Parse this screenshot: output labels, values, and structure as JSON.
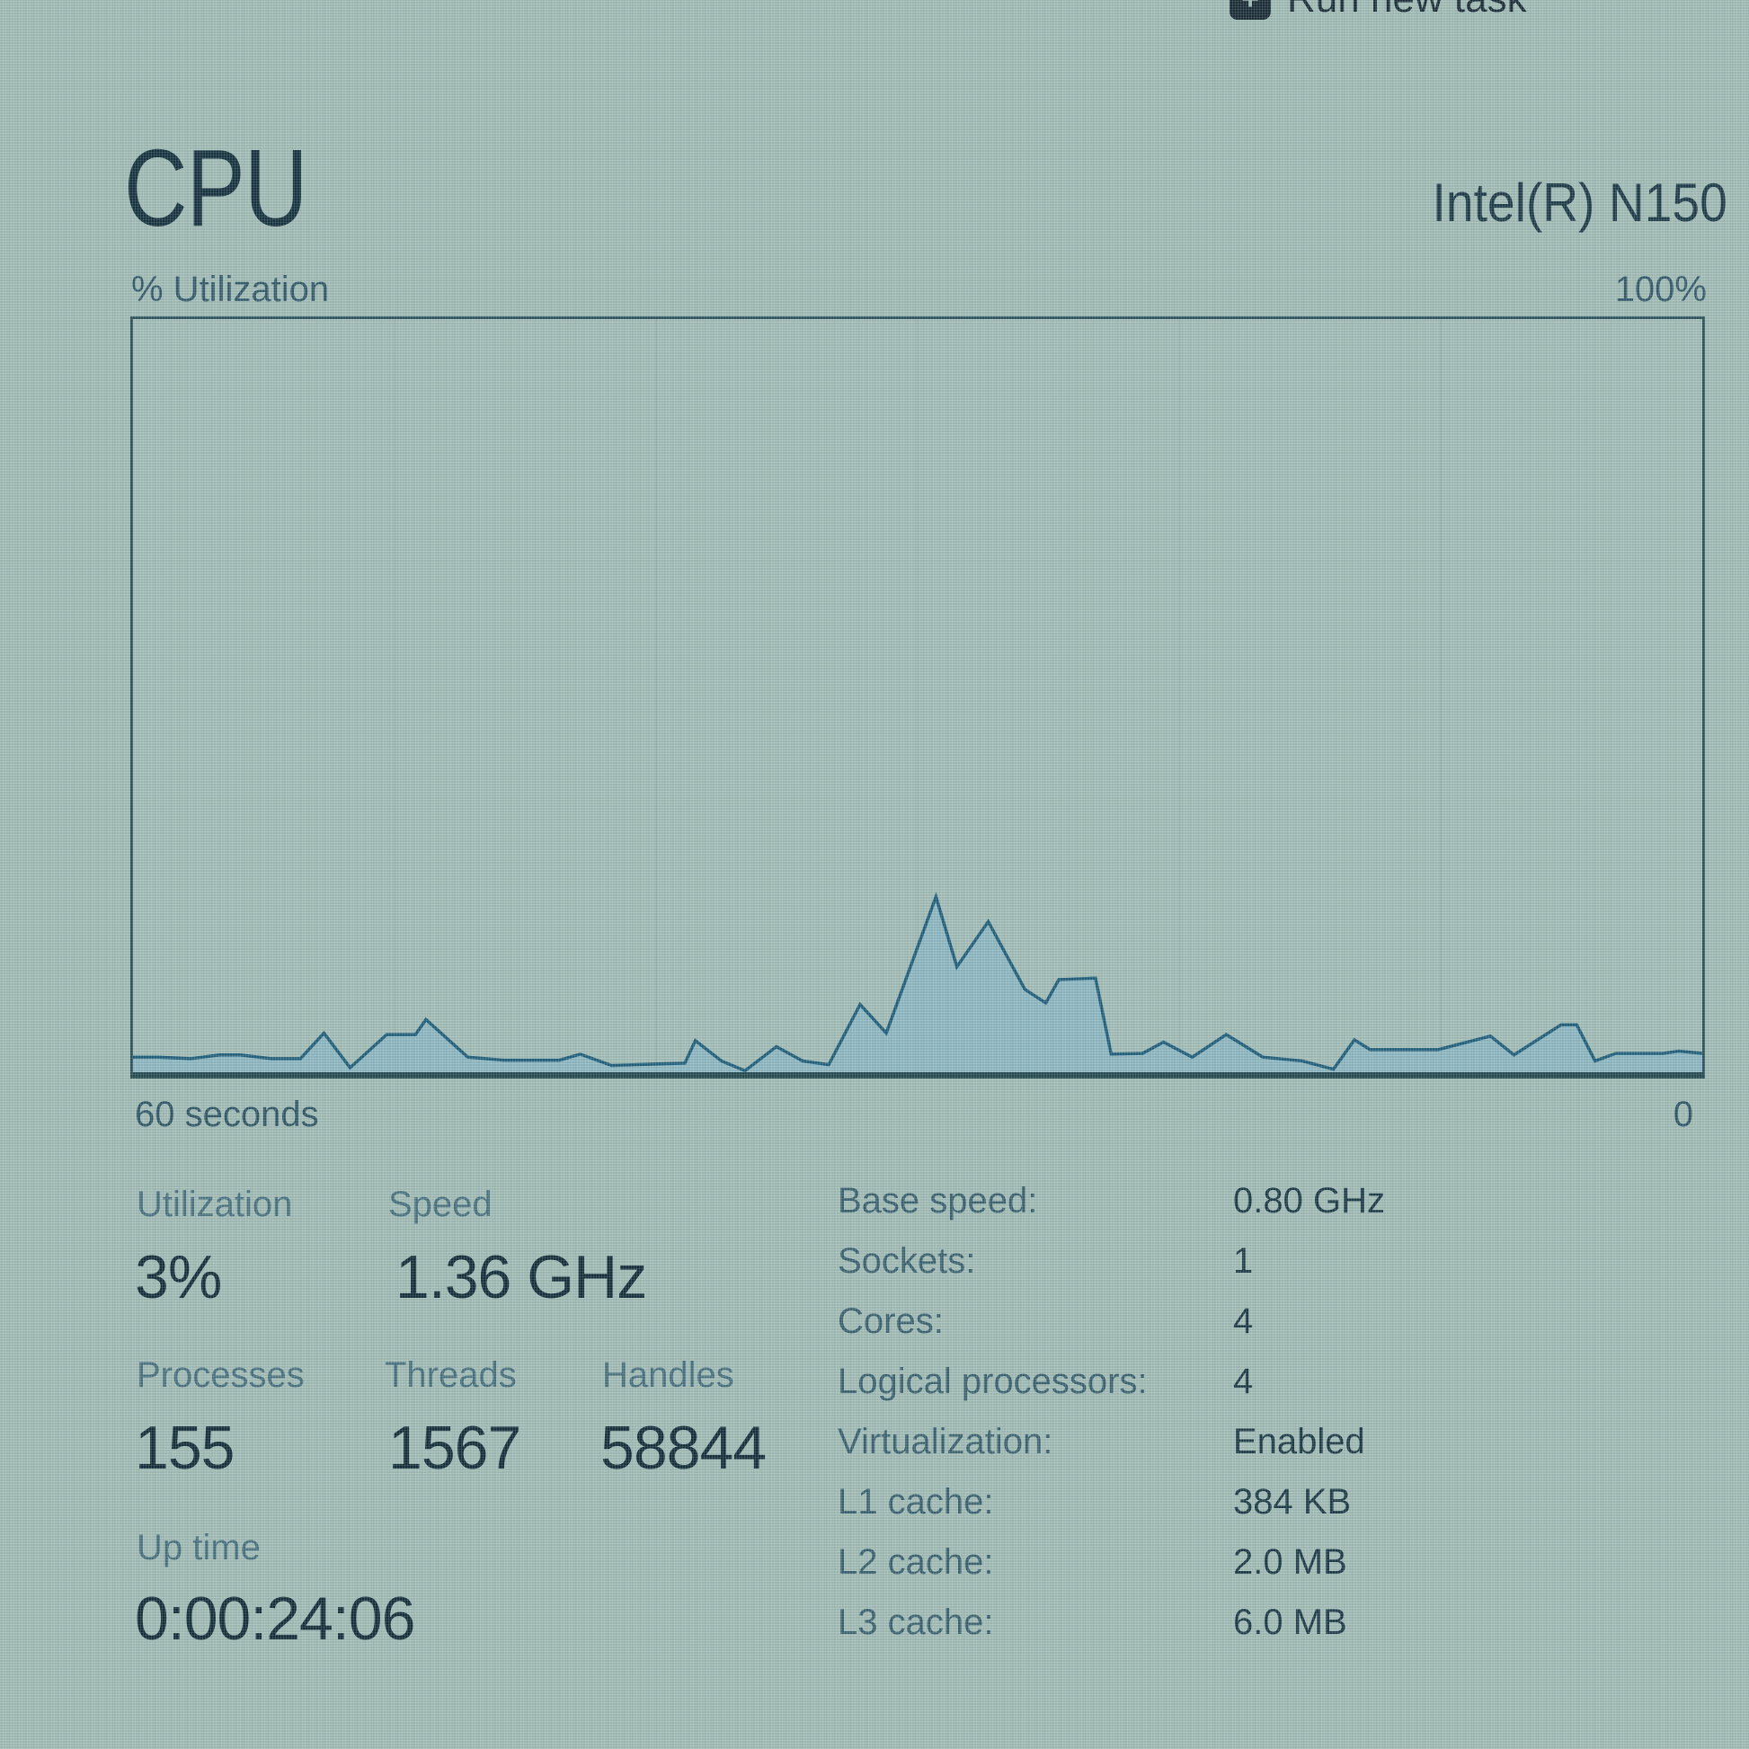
{
  "toolbar": {
    "run_new_task_label": "Run new task",
    "new_task_icon_glyph": "+"
  },
  "header": {
    "title": "CPU",
    "processor_name": "Intel(R) N150"
  },
  "chart": {
    "top_left_label": "% Utilization",
    "top_right_label": "100%",
    "bottom_left_label": "60 seconds",
    "bottom_right_label": "0"
  },
  "chart_data": {
    "type": "area",
    "title": "CPU % Utilization over 60 seconds",
    "series_name": "% Utilization",
    "x_range_seconds": [
      60,
      0
    ],
    "ylim": [
      0,
      100
    ],
    "grid": false,
    "legend": "none",
    "points": [
      {
        "s": 60.0,
        "v": 2.0
      },
      {
        "s": 59.0,
        "v": 2.0
      },
      {
        "s": 57.8,
        "v": 1.8
      },
      {
        "s": 56.7,
        "v": 2.3
      },
      {
        "s": 55.9,
        "v": 2.3
      },
      {
        "s": 54.7,
        "v": 1.8
      },
      {
        "s": 53.6,
        "v": 1.8
      },
      {
        "s": 52.7,
        "v": 5.2
      },
      {
        "s": 51.7,
        "v": 0.6
      },
      {
        "s": 50.3,
        "v": 5.0
      },
      {
        "s": 49.2,
        "v": 5.0
      },
      {
        "s": 48.8,
        "v": 7.0
      },
      {
        "s": 47.2,
        "v": 2.0
      },
      {
        "s": 45.8,
        "v": 1.6
      },
      {
        "s": 43.7,
        "v": 1.6
      },
      {
        "s": 42.9,
        "v": 2.4
      },
      {
        "s": 41.7,
        "v": 0.9
      },
      {
        "s": 39.9,
        "v": 1.1
      },
      {
        "s": 38.9,
        "v": 1.2
      },
      {
        "s": 38.5,
        "v": 4.2
      },
      {
        "s": 37.5,
        "v": 1.5
      },
      {
        "s": 36.6,
        "v": 0.2
      },
      {
        "s": 35.4,
        "v": 3.4
      },
      {
        "s": 34.4,
        "v": 1.5
      },
      {
        "s": 33.4,
        "v": 1.0
      },
      {
        "s": 32.2,
        "v": 9.0
      },
      {
        "s": 31.2,
        "v": 5.2
      },
      {
        "s": 29.3,
        "v": 23.3
      },
      {
        "s": 28.5,
        "v": 14.0
      },
      {
        "s": 27.3,
        "v": 20.0
      },
      {
        "s": 25.9,
        "v": 11.0
      },
      {
        "s": 25.1,
        "v": 9.2
      },
      {
        "s": 24.6,
        "v": 12.3
      },
      {
        "s": 23.2,
        "v": 12.5
      },
      {
        "s": 22.6,
        "v": 2.4
      },
      {
        "s": 21.4,
        "v": 2.5
      },
      {
        "s": 20.6,
        "v": 4.0
      },
      {
        "s": 19.5,
        "v": 2.0
      },
      {
        "s": 18.2,
        "v": 5.0
      },
      {
        "s": 16.8,
        "v": 2.0
      },
      {
        "s": 15.3,
        "v": 1.5
      },
      {
        "s": 14.1,
        "v": 0.4
      },
      {
        "s": 13.3,
        "v": 4.3
      },
      {
        "s": 12.7,
        "v": 3.0
      },
      {
        "s": 10.1,
        "v": 3.0
      },
      {
        "s": 8.1,
        "v": 4.8
      },
      {
        "s": 7.2,
        "v": 2.3
      },
      {
        "s": 5.4,
        "v": 6.3
      },
      {
        "s": 4.8,
        "v": 6.3
      },
      {
        "s": 4.1,
        "v": 1.5
      },
      {
        "s": 3.3,
        "v": 2.5
      },
      {
        "s": 1.5,
        "v": 2.5
      },
      {
        "s": 0.9,
        "v": 2.8
      },
      {
        "s": 0.0,
        "v": 2.5
      }
    ]
  },
  "stats": {
    "utilization": {
      "label": "Utilization",
      "value": "3%"
    },
    "speed": {
      "label": "Speed",
      "value": "1.36 GHz"
    },
    "processes": {
      "label": "Processes",
      "value": "155"
    },
    "threads": {
      "label": "Threads",
      "value": "1567"
    },
    "handles": {
      "label": "Handles",
      "value": "58844"
    },
    "uptime": {
      "label": "Up time",
      "value": "0:00:24:06"
    }
  },
  "details": {
    "rows": [
      {
        "label": "Base speed:",
        "value": "0.80 GHz"
      },
      {
        "label": "Sockets:",
        "value": "1"
      },
      {
        "label": "Cores:",
        "value": "4"
      },
      {
        "label": "Logical processors:",
        "value": "4"
      },
      {
        "label": "Virtualization:",
        "value": "Enabled"
      },
      {
        "label": "L1 cache:",
        "value": "384 KB"
      },
      {
        "label": "L2 cache:",
        "value": "2.0 MB"
      },
      {
        "label": "L3 cache:",
        "value": "6.0 MB"
      }
    ]
  },
  "colors": {
    "background": "#a2bcb6",
    "text_primary": "#16323e",
    "text_secondary": "#3a616f",
    "chart_border": "#2d535d",
    "chart_line": "#1f5e7b",
    "chart_fill": "#86b5c7"
  }
}
